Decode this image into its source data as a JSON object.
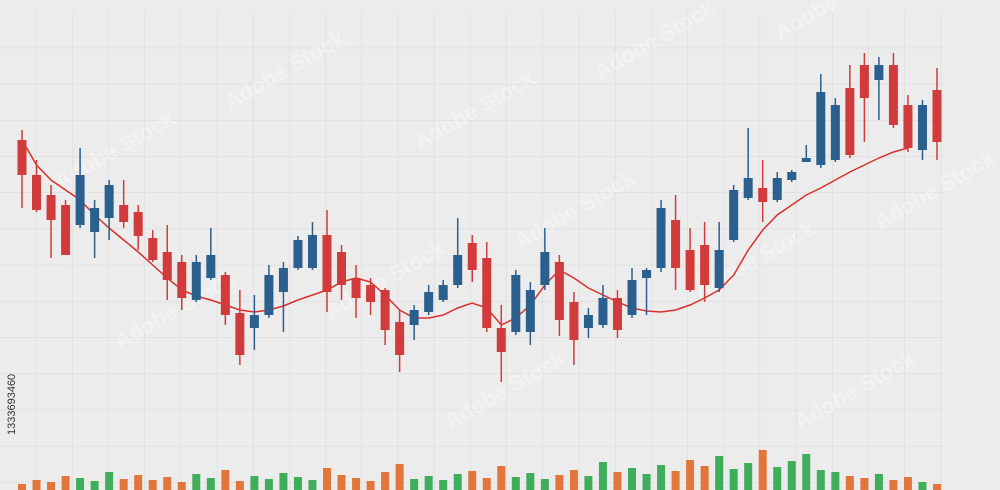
{
  "chart_data": {
    "type": "candlestick",
    "watermark": "Adobe Stock",
    "image_id": "1333693460",
    "ylim": [
      0,
      400
    ],
    "up_color": "#2b5f8e",
    "down_color": "#d23b3b",
    "grid": true,
    "open": [
      260,
      225,
      205,
      195,
      175,
      168,
      182,
      195,
      188,
      162,
      148,
      138,
      100,
      122,
      125,
      87,
      72,
      85,
      108,
      132,
      132,
      165,
      148,
      122,
      115,
      110,
      78,
      75,
      88,
      100,
      115,
      157,
      142,
      72,
      68,
      68,
      115,
      138,
      98,
      72,
      75,
      102,
      85,
      122,
      132,
      180,
      150,
      155,
      112,
      160,
      202,
      212,
      200,
      220,
      238,
      235,
      240,
      312,
      335,
      320,
      335,
      295,
      250,
      310
    ],
    "high": [
      270,
      240,
      215,
      200,
      252,
      200,
      220,
      220,
      195,
      170,
      175,
      145,
      145,
      172,
      128,
      110,
      105,
      135,
      138,
      164,
      178,
      190,
      155,
      135,
      122,
      112,
      90,
      95,
      115,
      120,
      182,
      165,
      158,
      95,
      130,
      118,
      172,
      145,
      108,
      92,
      115,
      110,
      132,
      132,
      200,
      205,
      172,
      178,
      178,
      215,
      272,
      240,
      228,
      230,
      255,
      326,
      302,
      335,
      347,
      343,
      347,
      305,
      300,
      332
    ],
    "low": [
      192,
      188,
      142,
      145,
      172,
      142,
      160,
      172,
      150,
      138,
      100,
      90,
      98,
      120,
      75,
      35,
      50,
      82,
      68,
      130,
      130,
      88,
      100,
      82,
      85,
      55,
      28,
      60,
      85,
      98,
      112,
      118,
      68,
      18,
      65,
      55,
      110,
      64,
      35,
      62,
      72,
      62,
      82,
      85,
      128,
      110,
      108,
      98,
      108,
      158,
      200,
      178,
      198,
      218,
      238,
      232,
      238,
      242,
      258,
      280,
      272,
      248,
      240,
      240
    ],
    "close": [
      225,
      190,
      180,
      145,
      225,
      192,
      215,
      178,
      164,
      140,
      120,
      102,
      138,
      145,
      85,
      45,
      85,
      125,
      132,
      160,
      165,
      108,
      115,
      102,
      98,
      70,
      45,
      90,
      108,
      115,
      145,
      130,
      72,
      48,
      125,
      110,
      148,
      80,
      60,
      85,
      102,
      70,
      120,
      130,
      192,
      132,
      110,
      115,
      150,
      210,
      222,
      198,
      222,
      228,
      242,
      308,
      295,
      245,
      302,
      335,
      275,
      252,
      295,
      258
    ],
    "moving_average": {
      "color": "#d9302c",
      "values": [
        260,
        235,
        220,
        210,
        200,
        185,
        172,
        160,
        148,
        135,
        122,
        110,
        104,
        100,
        95,
        90,
        88,
        90,
        94,
        100,
        105,
        110,
        118,
        122,
        118,
        105,
        90,
        82,
        82,
        85,
        92,
        97,
        92,
        75,
        82,
        95,
        115,
        130,
        122,
        112,
        105,
        98,
        92,
        89,
        88,
        90,
        95,
        102,
        110,
        125,
        150,
        170,
        185,
        195,
        205,
        212,
        220,
        228,
        235,
        242,
        248,
        252,
        null,
        null
      ]
    },
    "volume": {
      "ylim": [
        0,
        50
      ],
      "up_color": "#3fae5a",
      "down_color": "#e2763a",
      "values": [
        6,
        10,
        8,
        14,
        12,
        9,
        18,
        11,
        15,
        10,
        13,
        8,
        16,
        12,
        20,
        9,
        14,
        11,
        17,
        13,
        10,
        22,
        15,
        12,
        9,
        18,
        26,
        11,
        14,
        10,
        16,
        19,
        12,
        24,
        13,
        17,
        11,
        15,
        20,
        14,
        28,
        18,
        22,
        16,
        25,
        19,
        30,
        24,
        34,
        21,
        27,
        40,
        23,
        29,
        36,
        20,
        18,
        14,
        12,
        16,
        10,
        13,
        8,
        6
      ]
    }
  }
}
